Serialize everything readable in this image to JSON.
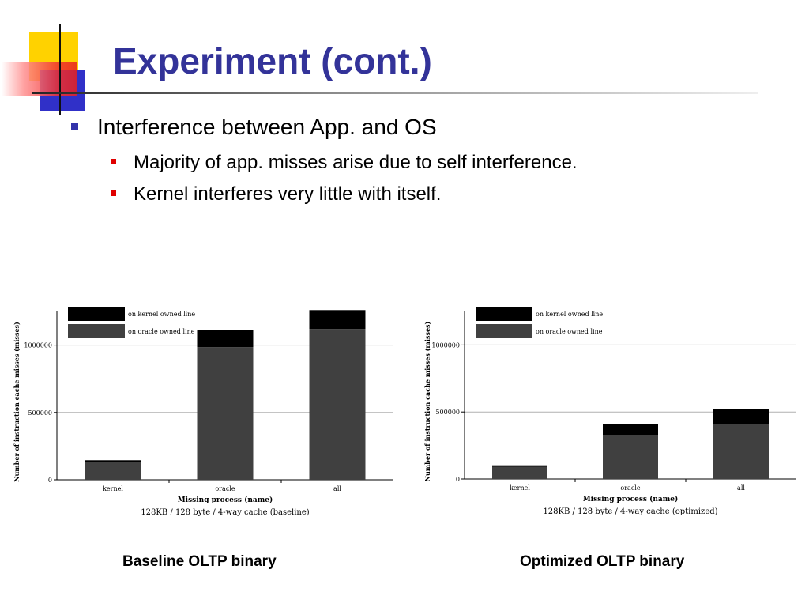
{
  "slide": {
    "title": "Experiment (cont.)",
    "bullet_main": "Interference between App. and OS",
    "sub_bullets": [
      "Majority of app. misses arise due to self interference.",
      "Kernel interferes very little with itself."
    ]
  },
  "captions": [
    "Baseline OLTP binary",
    "Optimized OLTP binary"
  ],
  "colors": {
    "title": "#333399",
    "kernel_owned": "#000000",
    "oracle_owned": "#404040",
    "bullet_l1": "#3333aa",
    "bullet_l2": "#e00000"
  },
  "chart_data": [
    {
      "type": "bar",
      "stacked": true,
      "title": "128KB / 128 byte / 4-way cache (baseline)",
      "xlabel": "Missing process (name)",
      "ylabel": "Number of instruction cache misses (misses)",
      "categories": [
        "kernel",
        "oracle",
        "all"
      ],
      "series": [
        {
          "name": "on oracle owned line",
          "values": [
            135000,
            985000,
            1120000
          ]
        },
        {
          "name": "on kernel owned line",
          "values": [
            10000,
            130000,
            140000
          ]
        }
      ],
      "yticks": [
        "0",
        "500000",
        "1000000"
      ],
      "ylim": [
        0,
        1250000
      ],
      "grid": true,
      "legend": "top-left"
    },
    {
      "type": "bar",
      "stacked": true,
      "title": "128KB / 128 byte / 4-way cache (optimized)",
      "xlabel": "Missing process (name)",
      "ylabel": "Number of instruction cache misses (misses)",
      "categories": [
        "kernel",
        "oracle",
        "all"
      ],
      "series": [
        {
          "name": "on oracle owned line",
          "values": [
            90000,
            330000,
            410000
          ]
        },
        {
          "name": "on kernel owned line",
          "values": [
            12000,
            80000,
            110000
          ]
        }
      ],
      "yticks": [
        "0",
        "500000",
        "1000000"
      ],
      "ylim": [
        0,
        1250000
      ],
      "grid": true,
      "legend": "top-left"
    }
  ]
}
